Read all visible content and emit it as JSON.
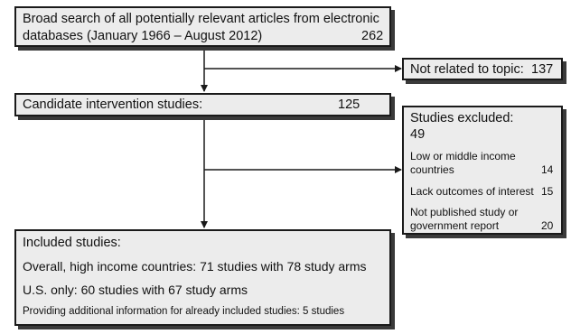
{
  "search": {
    "line1": "Broad search of all potentially relevant articles from electronic",
    "line2": "databases (January 1966 – August 2012)",
    "count": "262"
  },
  "not_related": {
    "label": "Not related to topic:",
    "count": "137"
  },
  "candidate": {
    "label": "Candidate intervention studies:",
    "count": "125"
  },
  "excluded": {
    "title": "Studies excluded:",
    "count": "49",
    "reasons": [
      {
        "line1": "Low or middle income",
        "line2": "countries",
        "count": "14"
      },
      {
        "line1": "Lack outcomes of interest",
        "count": "15"
      },
      {
        "line1": "Not published study or",
        "line2": "government report",
        "count": "20"
      }
    ]
  },
  "included": {
    "title": "Included studies:",
    "overall": "Overall, high income countries: 71 studies with 78 study arms",
    "us": "U.S. only: 60 studies with 67 study arms",
    "additional": "Providing additional information for already included studies: 5 studies"
  }
}
